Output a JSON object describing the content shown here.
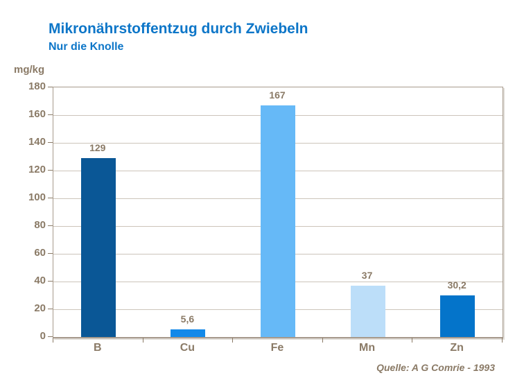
{
  "header": {
    "title": "Mikronährstoffentzug durch Zwiebeln",
    "subtitle": "Nur die Knolle",
    "title_color": "#0d76c8"
  },
  "chart_data": {
    "type": "bar",
    "title": "Mikronährstoffentzug durch Zwiebeln",
    "subtitle": "Nur die Knolle",
    "unit_label": "mg/kg",
    "categories": [
      "B",
      "Cu",
      "Fe",
      "Mn",
      "Zn"
    ],
    "values": [
      129,
      5.6,
      167,
      37,
      30.2
    ],
    "value_labels": [
      "129",
      "5,6",
      "167",
      "37",
      "30,2"
    ],
    "bar_colors": [
      "#0a5796",
      "#1389e9",
      "#66b9f7",
      "#bcdef9",
      "#0474ca"
    ],
    "ylim": [
      0,
      180
    ],
    "yticks": [
      0,
      20,
      40,
      60,
      80,
      100,
      120,
      140,
      160,
      180
    ],
    "grid": true,
    "legend": "none",
    "axis_text_color": "#8a7a66",
    "gridline_color": "#ccc4ba",
    "border_color": "#a79a8c",
    "source": "Quelle: A G Comrie - 1993"
  }
}
